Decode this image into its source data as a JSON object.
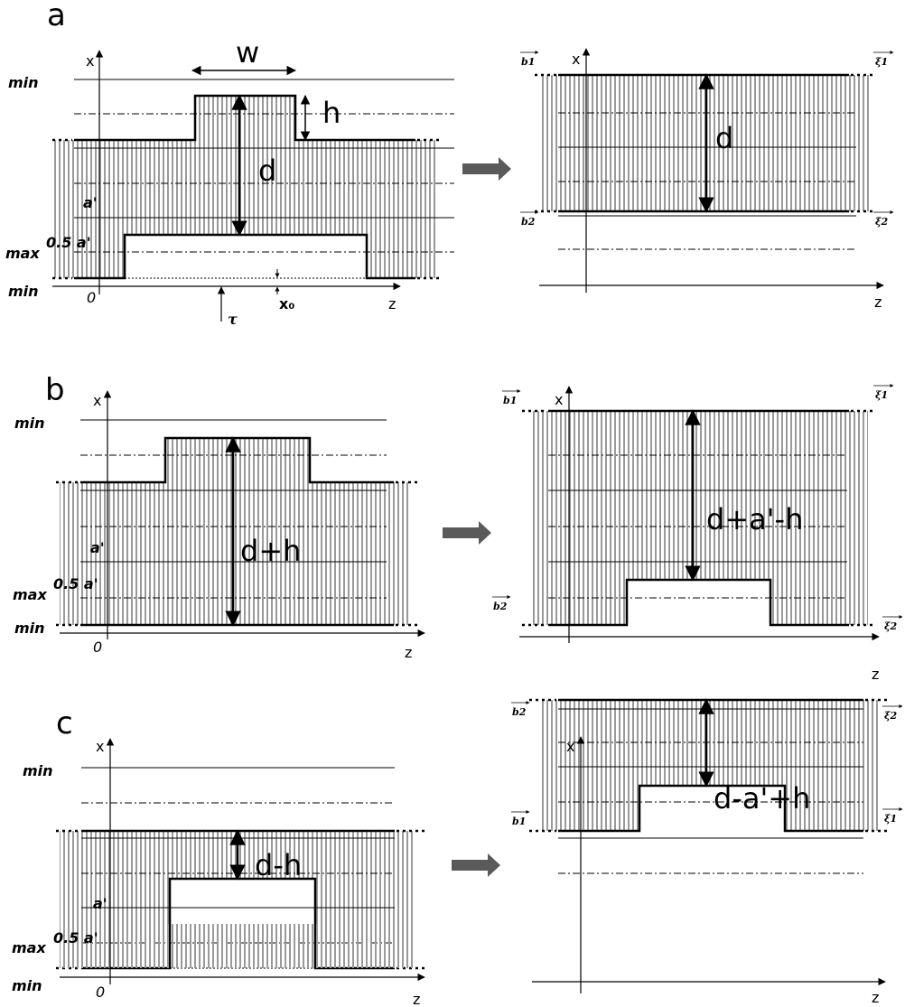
{
  "panels": {
    "a": {
      "letter": "a",
      "left": {
        "min_top": "min",
        "max": "max",
        "half_a": "0.5 a'",
        "a": "a'",
        "min_bottom": "min",
        "x": "x",
        "z": "z",
        "zero": "0",
        "w": "w",
        "h": "h",
        "d": "d",
        "x0": "x₀",
        "tau": "τ"
      },
      "right": {
        "x": "x",
        "z": "z",
        "d": "d",
        "b1": "b1",
        "b2": "b2",
        "xi1": "ξ1",
        "xi2": "ξ2"
      }
    },
    "b": {
      "letter": "b",
      "left": {
        "min_top": "min",
        "max": "max",
        "half_a": "0.5 a'",
        "a": "a'",
        "min_bottom": "min",
        "x": "x",
        "z": "z",
        "zero": "0",
        "d": "d+h"
      },
      "right": {
        "x": "x",
        "z": "z",
        "d": "d+a'-h",
        "b1": "b1",
        "b2": "b2",
        "xi1": "ξ1",
        "xi2": "ξ2"
      }
    },
    "c": {
      "letter": "c",
      "left": {
        "min_top": "min",
        "max": "max",
        "half_a": "0.5 a'",
        "a": "a'",
        "min_bottom": "min",
        "x": "x",
        "z": "z",
        "zero": "0",
        "d": "d-h"
      },
      "right": {
        "x": "x",
        "z": "z",
        "d": "d-a'+h",
        "b1": "b1",
        "b2": "b2",
        "xi1": "ξ1",
        "xi2": "ξ2"
      }
    }
  },
  "colors": {
    "hatch": "#9a9a9a",
    "arrow_fill": "#5a5a5a",
    "line": "#000000"
  }
}
